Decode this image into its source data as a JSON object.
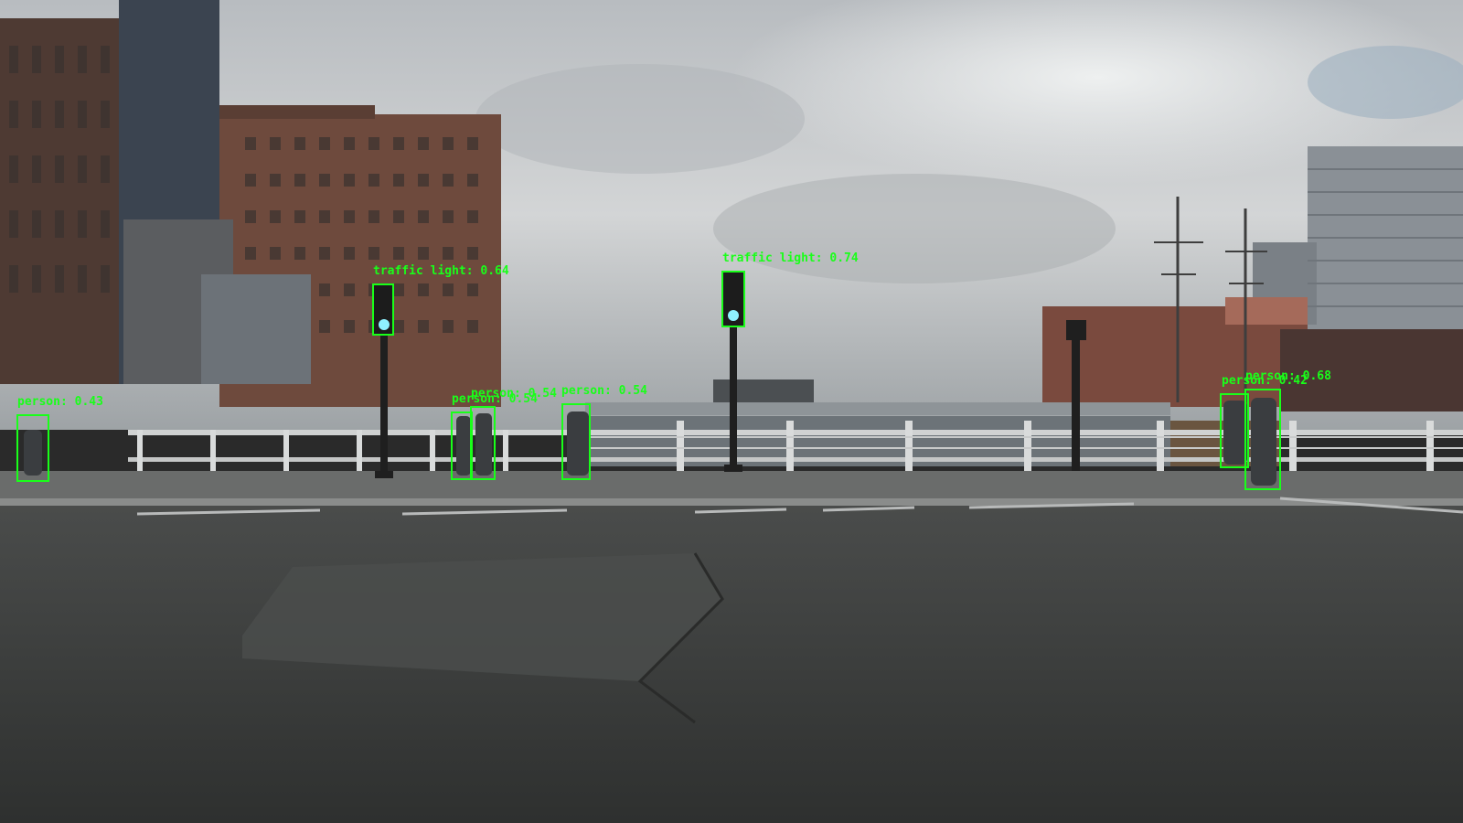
{
  "detections": [
    {
      "label": "traffic light: 0.64"
    },
    {
      "label": "traffic light: 0.74"
    },
    {
      "label": "person: 0.43"
    },
    {
      "label": "person: 0.54"
    },
    {
      "label": "person: 0.54"
    },
    {
      "label": "person: 0.54"
    },
    {
      "label": "person: 0.42"
    },
    {
      "label": "person: 0.68"
    }
  ],
  "colors": {
    "detection_box": "#19ff19",
    "sky": "#c9cdd0",
    "road": "#3d3f3e"
  }
}
